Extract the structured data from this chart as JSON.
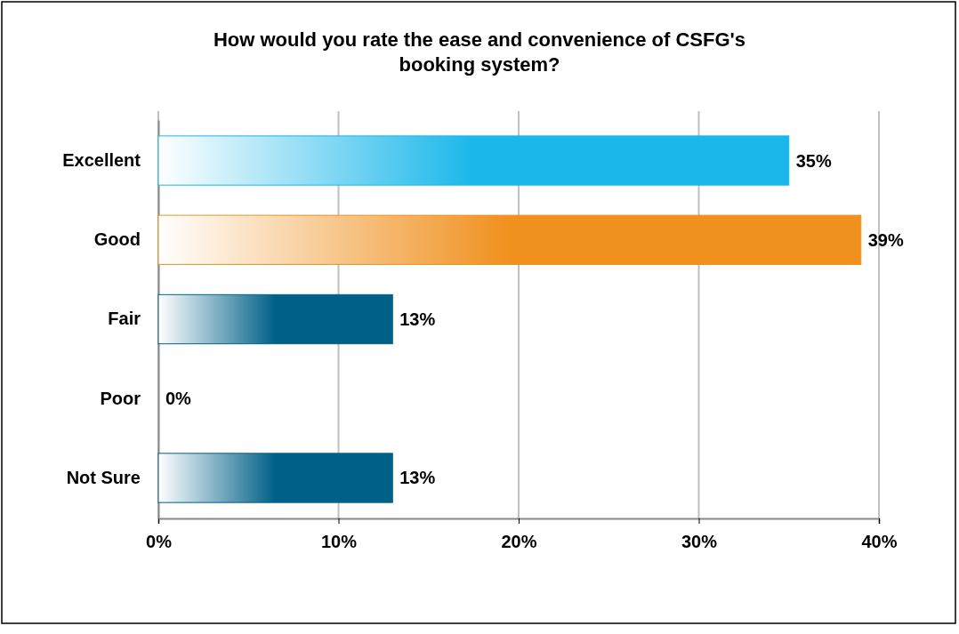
{
  "chart_data": {
    "type": "bar",
    "orientation": "horizontal",
    "title": "How would you rate the ease and convenience of CSFG's booking system?",
    "categories": [
      "Excellent",
      "Good",
      "Fair",
      "Poor",
      "Not Sure"
    ],
    "values": [
      35,
      39,
      13,
      0,
      13
    ],
    "colors": [
      "#1ab7ea",
      "#f0901e",
      "#006088",
      "#404040",
      "#006088"
    ],
    "value_labels": [
      "35%",
      "39%",
      "13%",
      "0%",
      "13%"
    ],
    "xlim": [
      0,
      40
    ],
    "xticks": [
      {
        "value": 0,
        "label": "0%"
      },
      {
        "value": 10,
        "label": "10%"
      },
      {
        "value": 20,
        "label": "20%"
      },
      {
        "value": 30,
        "label": "30%"
      },
      {
        "value": 40,
        "label": "40%"
      }
    ],
    "grid": "x"
  }
}
